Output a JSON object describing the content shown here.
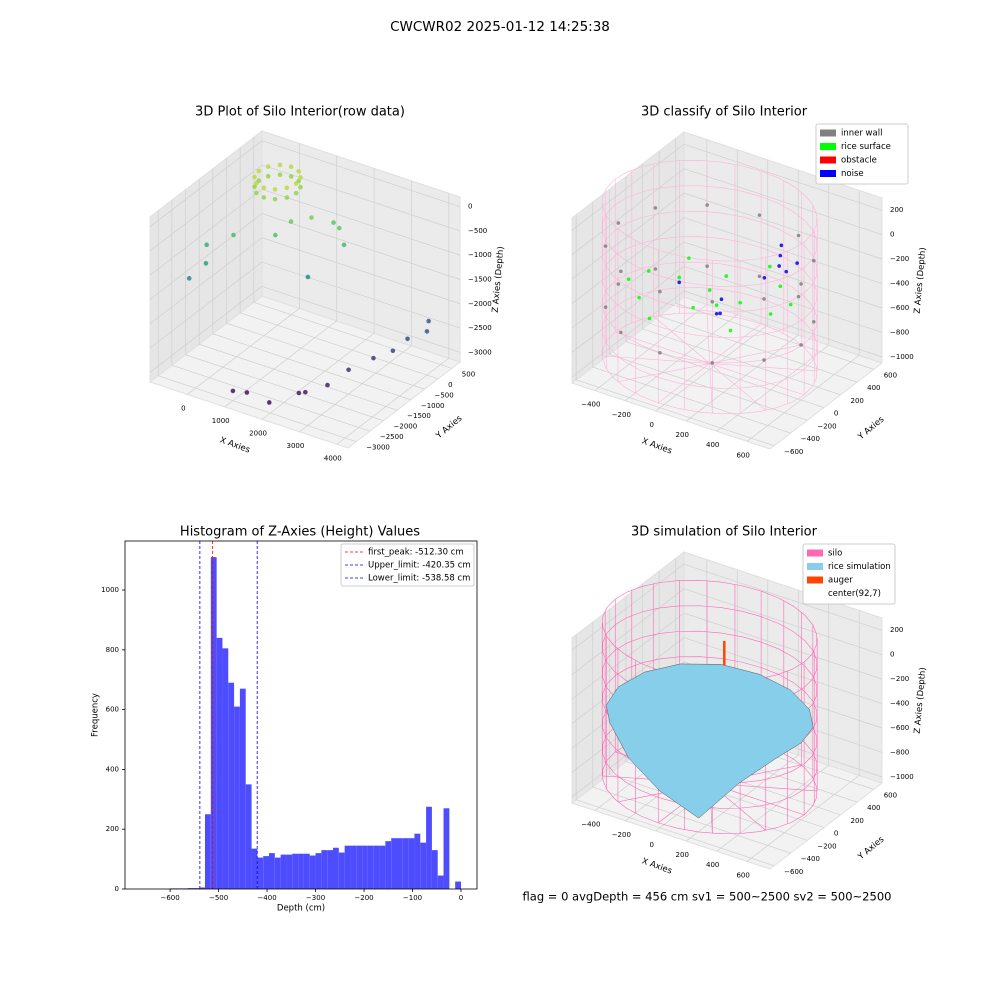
{
  "title": "CWCWR02 2025-01-12 14:25:38",
  "footer": "flag = 0     avgDepth = 456 cm  sv1 = 500~2500  sv2 = 500~2500",
  "chart_data": [
    {
      "type": "scatter3d",
      "title": "3D Plot of Silo Interior(row data)",
      "xlabel": "X Axies",
      "ylabel": "Y Axies",
      "zlabel": "Z Axies (Depth)",
      "xlim": [
        -1000,
        4300
      ],
      "ylim": [
        -3300,
        800
      ],
      "zlim": [
        -3200,
        200
      ],
      "xticks": [
        0,
        1000,
        2000,
        3000,
        4000
      ],
      "yticks": [
        {
          "value": -3000,
          "label": "−3000"
        },
        {
          "value": -2500,
          "label": "−2500"
        },
        {
          "value": -2000,
          "label": "−2000"
        },
        {
          "value": -1500,
          "label": "−1500"
        },
        {
          "value": -1000,
          "label": "−1000"
        },
        {
          "value": -500,
          "label": "−500"
        },
        0,
        500
      ],
      "zticks": [
        {
          "value": -3000,
          "label": "−3000"
        },
        {
          "value": -2500,
          "label": "−2500"
        },
        {
          "value": -2000,
          "label": "−2000"
        },
        {
          "value": -1500,
          "label": "−1500"
        },
        {
          "value": -1000,
          "label": "−1000"
        },
        {
          "value": -500,
          "label": "−500"
        },
        0
      ],
      "colormap": "viridis",
      "series": [
        {
          "x": [
            500,
            433,
            250,
            0,
            -250,
            -433,
            -500,
            -433,
            -250,
            0,
            250,
            433,
            500,
            433,
            250,
            0,
            -250,
            -433,
            -500,
            -433,
            -250,
            0,
            250,
            433,
            800,
            1200,
            600,
            -300,
            1500,
            1800,
            -800,
            -600,
            1400,
            -900,
            2000,
            1000,
            1300,
            1900,
            2400,
            2500,
            2800,
            3000,
            3300,
            3600,
            3700,
            4000,
            3900
          ],
          "y": [
            0,
            250,
            433,
            500,
            433,
            250,
            0,
            -250,
            -433,
            -500,
            -433,
            -250,
            0,
            250,
            433,
            500,
            433,
            250,
            0,
            -250,
            -433,
            -500,
            -433,
            -250,
            -600,
            -400,
            -900,
            -1200,
            0,
            -200,
            -1500,
            -1800,
            -800,
            -2000,
            -300,
            -3000,
            -2900,
            -2900,
            -2500,
            -2400,
            -2000,
            -1500,
            -1000,
            -700,
            -300,
            0,
            200
          ],
          "z": [
            -150,
            -150,
            -150,
            -150,
            -150,
            -150,
            -150,
            -150,
            -150,
            -150,
            -150,
            -150,
            -350,
            -350,
            -350,
            -350,
            -350,
            -350,
            -350,
            -350,
            -350,
            -350,
            -350,
            -350,
            -600,
            -500,
            -800,
            -900,
            -700,
            -650,
            -1100,
            -1300,
            -1500,
            -1600,
            -900,
            -3000,
            -3000,
            -3050,
            -2900,
            -2900,
            -2850,
            -2700,
            -2600,
            -2500,
            -2400,
            -2300,
            -2200
          ]
        }
      ]
    },
    {
      "type": "scatter3d",
      "title": "3D classify of Silo Interior",
      "xlabel": "X Axies",
      "ylabel": "Y Axies",
      "zlabel": "Z Axies (Depth)",
      "xlim": [
        -550,
        750
      ],
      "ylim": [
        -650,
        700
      ],
      "zlim": [
        -1050,
        300
      ],
      "xticks": [
        {
          "value": -400,
          "label": "−400"
        },
        {
          "value": -200,
          "label": "−200"
        },
        0,
        200,
        400,
        600
      ],
      "yticks": [
        {
          "value": -600,
          "label": "−600"
        },
        {
          "value": -400,
          "label": "−400"
        },
        {
          "value": -200,
          "label": "−200"
        },
        0,
        200,
        400,
        600
      ],
      "zticks": [
        {
          "value": -1000,
          "label": "−1000"
        },
        {
          "value": -800,
          "label": "−800"
        },
        {
          "value": -600,
          "label": "−600"
        },
        {
          "value": -400,
          "label": "−400"
        },
        {
          "value": -200,
          "label": "−200"
        },
        0,
        200
      ],
      "legend": "upper right",
      "frame": {
        "color": "#ffb3d9",
        "radius": 620,
        "z": [
          -1000,
          250
        ]
      },
      "series": [
        {
          "name": "inner wall",
          "color": "#808080",
          "x": [
            600,
            520,
            300,
            0,
            -300,
            -520,
            -600,
            -520,
            -300,
            0,
            300,
            520,
            600,
            520,
            300,
            0,
            -300,
            -520,
            -600,
            -520,
            -300,
            0,
            300,
            520
          ],
          "y": [
            0,
            300,
            520,
            600,
            520,
            300,
            0,
            -300,
            -520,
            -600,
            -520,
            -300,
            0,
            300,
            520,
            600,
            520,
            300,
            0,
            -300,
            -520,
            -600,
            -520,
            -300
          ],
          "z": [
            -100,
            -100,
            -100,
            -100,
            -100,
            -100,
            -100,
            -100,
            -100,
            -100,
            -100,
            -100,
            -600,
            -600,
            -600,
            -600,
            -600,
            -600,
            -600,
            -600,
            -600,
            -600,
            -600,
            -600
          ]
        },
        {
          "name": "rice surface",
          "color": "#00ff00",
          "x": [
            0,
            200,
            400,
            -200,
            -400,
            0,
            0,
            300,
            -300,
            300,
            -300,
            150,
            -150,
            450,
            -450,
            100
          ],
          "y": [
            0,
            0,
            0,
            0,
            0,
            200,
            -200,
            300,
            300,
            -300,
            -300,
            450,
            -450,
            150,
            -150,
            -100
          ],
          "z": [
            -400,
            -420,
            -430,
            -380,
            -410,
            -390,
            -440,
            -400,
            -420,
            -450,
            -430,
            -380,
            -460,
            -410,
            -420,
            -430
          ]
        },
        {
          "name": "obstacle",
          "color": "#ff0000",
          "x": [],
          "y": [],
          "z": []
        },
        {
          "name": "noise",
          "color": "#0000ff",
          "x": [
            300,
            320,
            280,
            350,
            100,
            150,
            -200,
            250,
            50,
            400
          ],
          "y": [
            300,
            250,
            350,
            280,
            -100,
            -150,
            0,
            200,
            50,
            320
          ],
          "z": [
            -150,
            -200,
            -100,
            -250,
            -500,
            -450,
            -420,
            -300,
            -480,
            -180
          ]
        }
      ]
    },
    {
      "type": "histogram",
      "title": "Histogram of Z-Axies (Height) Values",
      "xlabel": "Depth (cm)",
      "ylabel": "Frequency",
      "xlim": [
        -693,
        33
      ],
      "ylim": [
        0,
        1164
      ],
      "xticks": [
        {
          "value": -600,
          "label": "−600"
        },
        {
          "value": -500,
          "label": "−500"
        },
        {
          "value": -400,
          "label": "−400"
        },
        {
          "value": -300,
          "label": "−300"
        },
        {
          "value": -200,
          "label": "−200"
        },
        {
          "value": -100,
          "label": "−100"
        },
        0
      ],
      "yticks": [
        0,
        200,
        400,
        600,
        800,
        1000
      ],
      "color": "#4d4dff",
      "bins": [
        -600,
        -588,
        -576,
        -564,
        -552,
        -540,
        -528,
        -516,
        -504,
        -492,
        -480,
        -468,
        -456,
        -444,
        -432,
        -420,
        -408,
        -396,
        -384,
        -372,
        -360,
        -348,
        -336,
        -324,
        -312,
        -300,
        -288,
        -276,
        -264,
        -252,
        -240,
        -228,
        -216,
        -204,
        -192,
        -180,
        -168,
        -156,
        -144,
        -132,
        -120,
        -108,
        -96,
        -84,
        -72,
        -60,
        -48,
        -36,
        -24,
        -12,
        0
      ],
      "values": [
        2,
        2,
        2,
        3,
        3,
        5,
        250,
        1110,
        840,
        805,
        690,
        610,
        670,
        350,
        135,
        105,
        110,
        120,
        105,
        115,
        115,
        118,
        118,
        118,
        112,
        120,
        130,
        130,
        138,
        122,
        145,
        145,
        145,
        145,
        145,
        145,
        145,
        160,
        170,
        170,
        170,
        170,
        185,
        155,
        275,
        130,
        45,
        270,
        0,
        25
      ],
      "legend": "upper right",
      "lines": [
        {
          "name": "first_peak: -512.30 cm",
          "value": -512.3,
          "color": "#ff0000"
        },
        {
          "name": "Upper_limit: -420.35 cm",
          "value": -420.35,
          "color": "#0000ff"
        },
        {
          "name": "Lower_limit: -538.58 cm",
          "value": -538.58,
          "color": "#0000ff"
        }
      ]
    },
    {
      "type": "surface3d",
      "title": "3D simulation of Silo Interior",
      "xlabel": "X Axies",
      "ylabel": "Y Axies",
      "zlabel": "Z Axies (Depth)",
      "xlim": [
        -550,
        750
      ],
      "ylim": [
        -650,
        700
      ],
      "zlim": [
        -1050,
        300
      ],
      "xticks": [
        {
          "value": -400,
          "label": "−400"
        },
        {
          "value": -200,
          "label": "−200"
        },
        0,
        200,
        400,
        600
      ],
      "yticks": [
        {
          "value": -600,
          "label": "−600"
        },
        {
          "value": -400,
          "label": "−400"
        },
        {
          "value": -200,
          "label": "−200"
        },
        0,
        200,
        400,
        600
      ],
      "zticks": [
        {
          "value": -1000,
          "label": "−1000"
        },
        {
          "value": -800,
          "label": "−800"
        },
        {
          "value": -600,
          "label": "−600"
        },
        {
          "value": -400,
          "label": "−400"
        },
        {
          "value": -200,
          "label": "−200"
        },
        0,
        200
      ],
      "legend": "upper right",
      "series": [
        {
          "name": "silo",
          "color": "#ff69b4",
          "radius": 620,
          "z": [
            -1000,
            250
          ]
        },
        {
          "name": "rice simulation",
          "color": "#87ceeb",
          "radius": 600,
          "z": [
            -420,
            -430,
            -440,
            -430,
            -420,
            -410,
            -420,
            -440,
            -460,
            -470,
            -460,
            -600,
            -750,
            -900,
            -600,
            -450
          ]
        },
        {
          "name": "auger",
          "color": "#ff4500",
          "x": [
            92,
            92
          ],
          "y": [
            7,
            7
          ],
          "z": [
            0,
            200
          ]
        },
        {
          "name": "center(92,7)"
        }
      ]
    }
  ]
}
